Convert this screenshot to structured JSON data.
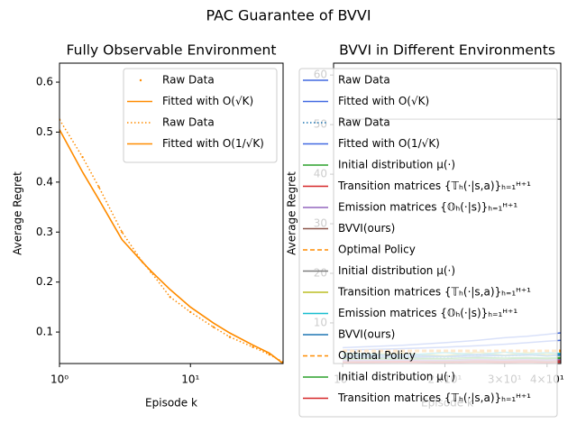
{
  "title": "PAC Guarantee of BVVI",
  "chart_data": [
    {
      "type": "line",
      "title": "Fully Observable Environment",
      "xlabel": "Episode k",
      "ylabel": "Average Regret",
      "xscale": "log",
      "legend": "upper right",
      "x": [
        1,
        1.5,
        2,
        3,
        4.3,
        5,
        7,
        10,
        15,
        20,
        30,
        40,
        51
      ],
      "xlim": [
        1,
        51
      ],
      "ylim": [
        0.037,
        0.638
      ],
      "xticks": [
        {
          "value": 1,
          "label": "10⁰"
        },
        {
          "value": 10,
          "label": "10¹"
        }
      ],
      "yticks": [
        0.1,
        0.2,
        0.3,
        0.4,
        0.5,
        0.6
      ],
      "series": [
        {
          "name": "Raw Data",
          "color": "#ff8c00",
          "style": "markers",
          "values": [
            0.525,
            0.45,
            0.39,
            0.3,
            0.24,
            0.22,
            0.17,
            0.14,
            0.11,
            0.09,
            0.07,
            0.055,
            0.04
          ]
        },
        {
          "name": "Fitted with O(√K)",
          "color": "#ff8c00",
          "style": "solid",
          "values": [
            0.505,
            0.42,
            0.365,
            0.285,
            0.24,
            0.222,
            0.185,
            0.15,
            0.118,
            0.098,
            0.074,
            0.058,
            0.037
          ]
        },
        {
          "name": "Raw Data",
          "color": "#ff8c00",
          "style": "dotted",
          "values": [
            0.525,
            0.45,
            0.39,
            0.3,
            0.24,
            0.22,
            0.17,
            0.14,
            0.11,
            0.09,
            0.07,
            0.055,
            0.04
          ]
        },
        {
          "name": "Fitted with O(1/√K)",
          "color": "#ff8c00",
          "style": "solid",
          "values": [
            0.505,
            0.42,
            0.365,
            0.285,
            0.24,
            0.222,
            0.185,
            0.15,
            0.118,
            0.098,
            0.074,
            0.058,
            0.037
          ]
        }
      ]
    },
    {
      "type": "line",
      "title": "BVVI in Different Environments",
      "xlabel": "Episode k",
      "ylabel": "Average Regret",
      "xscale": "log",
      "legend": "upper right",
      "x": [
        10,
        15,
        20,
        25,
        30,
        35,
        40,
        44
      ],
      "xlim": [
        9.4,
        43.9
      ],
      "ylim": [
        1.8,
        62.4
      ],
      "xticks": [
        {
          "value": 10,
          "label": "10¹"
        },
        {
          "value": 20,
          "label": "2×10¹"
        },
        {
          "value": 30,
          "label": "3×10¹"
        },
        {
          "value": 40,
          "label": "4×10¹"
        }
      ],
      "yticks": [
        10,
        20,
        30,
        40,
        50,
        60
      ],
      "series": [
        {
          "name": "Raw Data",
          "color": "#4169e1",
          "style": "solid",
          "values": [
            5,
            5.5,
            6,
            6.5,
            7,
            7.3,
            7.7,
            8
          ]
        },
        {
          "name": "Fitted with O(√K)",
          "color": "#4169e1",
          "style": "solid",
          "values": [
            4.5,
            4.8,
            5.1,
            5.4,
            5.7,
            6,
            6.3,
            6.5
          ]
        },
        {
          "name": "Raw Data",
          "color": "#1f77b4",
          "style": "dotted",
          "values": [
            3.2,
            3.3,
            3.1,
            3.4,
            3.3,
            3.5,
            3.4,
            3.6
          ]
        },
        {
          "name": "Fitted with O(1/√K)",
          "color": "#4169e1",
          "style": "solid",
          "values": [
            3,
            3.1,
            3.2,
            3.3,
            3.4,
            3.5,
            3.6,
            3.7
          ]
        },
        {
          "name": "Initial distribution μ(·)",
          "color": "#2ca02c",
          "style": "solid",
          "values": [
            2.5,
            2.6,
            2.5,
            2.7,
            2.6,
            2.8,
            2.7,
            2.8
          ]
        },
        {
          "name": "Transition matrices {𝕋ₕ(·|s,a)}ₕ₌₁ᴴ⁺¹",
          "color": "#d62728",
          "style": "solid",
          "values": [
            2.2,
            2.3,
            2.2,
            2.4,
            2.3,
            2.4,
            2.3,
            2.5
          ]
        },
        {
          "name": "Emission matrices {𝕆ₕ(·|s)}ₕ₌₁ᴴ⁺¹",
          "color": "#9467bd",
          "style": "solid",
          "values": [
            2.4,
            2.5,
            2.4,
            2.6,
            2.5,
            2.6,
            2.5,
            2.6
          ]
        },
        {
          "name": "BVVI(ours)",
          "color": "#8c564b",
          "style": "solid",
          "values": [
            2.1,
            2.1,
            2.2,
            2.2,
            2.1,
            2.2,
            2.2,
            2.2
          ]
        },
        {
          "name": "Optimal Policy",
          "color": "#ff8c00",
          "style": "dashed",
          "values": [
            4.5,
            4.5,
            4.5,
            4.5,
            4.5,
            4.5,
            4.5,
            4.5
          ]
        },
        {
          "name": "Initial distribution μ(·)",
          "color": "#7f7f7f",
          "style": "solid",
          "values": [
            51.1,
            51.1,
            51.1,
            51.1,
            51.1,
            51.1,
            51.1,
            51.1
          ]
        },
        {
          "name": "Transition matrices {𝕋ₕ(·|s,a)}ₕ₌₁ᴴ⁺¹",
          "color": "#bcbd22",
          "style": "solid",
          "values": [
            3.6,
            3.9,
            3.4,
            4.1,
            3.5,
            4.0,
            3.6,
            3.9
          ]
        },
        {
          "name": "Emission matrices {𝕆ₕ(·|s)}ₕ₌₁ᴴ⁺¹",
          "color": "#17becf",
          "style": "solid",
          "values": [
            3.8,
            3.5,
            4.0,
            3.6,
            4.1,
            3.7,
            4.0,
            3.8
          ]
        },
        {
          "name": "BVVI(ours)",
          "color": "#1f77b4",
          "style": "solid",
          "values": [
            3.3,
            3.6,
            3.2,
            3.7,
            3.4,
            3.6,
            3.3,
            3.5
          ]
        },
        {
          "name": "Optimal Policy",
          "color": "#ff8c00",
          "style": "dashed",
          "values": [
            4.2,
            4.2,
            4.2,
            4.2,
            4.2,
            4.2,
            4.2,
            4.2
          ]
        },
        {
          "name": "Initial distribution μ(·)",
          "color": "#2ca02c",
          "style": "solid",
          "values": [
            2.8,
            2.9,
            2.8,
            3.0,
            2.9,
            3.0,
            2.9,
            3.0
          ]
        },
        {
          "name": "Transition matrices {𝕋ₕ(·|s,a)}ₕ₌₁ᴴ⁺¹",
          "color": "#d62728",
          "style": "solid",
          "values": [
            2.0,
            2.1,
            2.0,
            2.1,
            2.0,
            2.1,
            2.0,
            2.1
          ]
        }
      ]
    }
  ]
}
